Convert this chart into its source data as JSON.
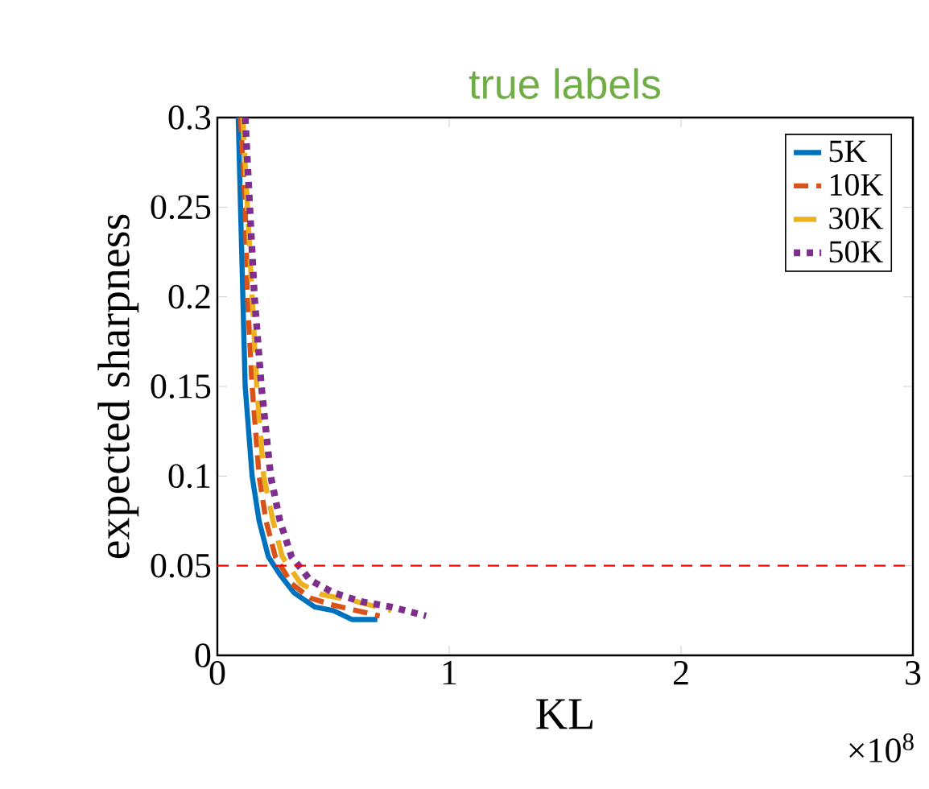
{
  "chart_data": {
    "type": "line",
    "title": "true labels",
    "xlabel": "KL",
    "ylabel": "expected sharpness",
    "xlim": [
      0,
      3
    ],
    "xticks": [
      0,
      1,
      2,
      3
    ],
    "ylim": [
      0,
      0.3
    ],
    "yticks": [
      0,
      0.05,
      0.1,
      0.15,
      0.2,
      0.25,
      0.3
    ],
    "legend": "top right",
    "grid": false,
    "series": [
      {
        "name": "5K",
        "color": "#0072bd",
        "line_style": "solid",
        "x": [
          0.09,
          0.1,
          0.11,
          0.12,
          0.15,
          0.18,
          0.22,
          0.27,
          0.33,
          0.42,
          0.5,
          0.58,
          0.69
        ],
        "values": [
          0.3,
          0.25,
          0.2,
          0.15,
          0.1,
          0.075,
          0.055,
          0.045,
          0.035,
          0.027,
          0.025,
          0.02,
          0.02
        ]
      },
      {
        "name": "10K",
        "color": "#d95319",
        "line_style": "dashed",
        "x": [
          0.1,
          0.12,
          0.13,
          0.15,
          0.18,
          0.21,
          0.25,
          0.32,
          0.4,
          0.5,
          0.6,
          0.7
        ],
        "values": [
          0.3,
          0.25,
          0.2,
          0.15,
          0.1,
          0.075,
          0.055,
          0.04,
          0.032,
          0.028,
          0.025,
          0.022
        ]
      },
      {
        "name": "30K",
        "color": "#edb120",
        "line_style": "longdashed",
        "x": [
          0.11,
          0.13,
          0.15,
          0.17,
          0.2,
          0.24,
          0.28,
          0.36,
          0.45,
          0.6,
          0.75
        ],
        "values": [
          0.3,
          0.25,
          0.2,
          0.15,
          0.1,
          0.075,
          0.055,
          0.04,
          0.034,
          0.03,
          0.025
        ]
      },
      {
        "name": "50K",
        "color": "#7e2f8e",
        "line_style": "dotted",
        "x": [
          0.12,
          0.14,
          0.16,
          0.19,
          0.23,
          0.27,
          0.32,
          0.4,
          0.5,
          0.62,
          0.75,
          0.9
        ],
        "values": [
          0.3,
          0.25,
          0.2,
          0.15,
          0.1,
          0.075,
          0.055,
          0.042,
          0.035,
          0.03,
          0.027,
          0.022
        ]
      }
    ],
    "ref_lines": [
      {
        "axis": "y",
        "value": 0.05,
        "color": "#ff0000",
        "line_style": "dashed"
      }
    ],
    "annotations": [
      "×10$^{8}$"
    ]
  }
}
